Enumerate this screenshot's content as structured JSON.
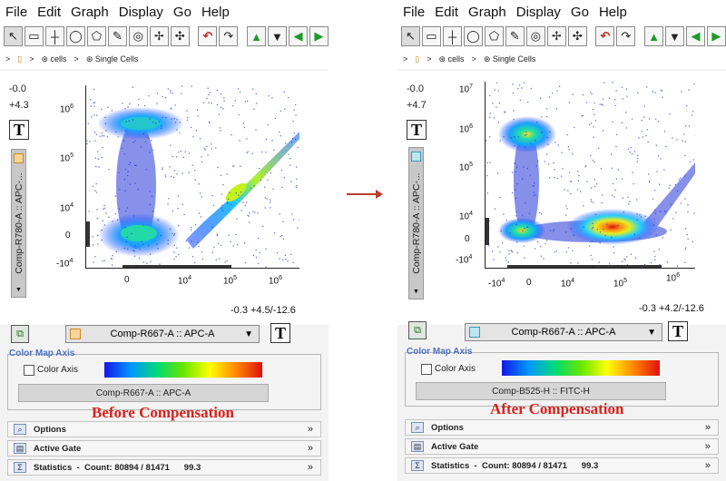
{
  "menu": [
    "File",
    "Edit",
    "Graph",
    "Display",
    "Go",
    "Help"
  ],
  "toolbar_icons": [
    "pointer-icon",
    "rectangle-gate-icon",
    "quadrant-icon",
    "ellipse-gate-icon",
    "polygon-gate-icon",
    "freehand-pencil-icon",
    "web-gate-icon",
    "spider-gate-icon",
    "curly-quad-icon",
    "undo-icon",
    "redo-icon",
    "up-icon",
    "down-icon",
    "left-icon",
    "right-icon"
  ],
  "breadcrumb": {
    "sep": ">",
    "cells": "cells",
    "single_cells": "Single Cells"
  },
  "left": {
    "y_range_min": "-0.0",
    "y_range_max": "+4.3",
    "y_param": "Comp-R780-A :: APC-...",
    "x_info": "-0.3 +4.5/-12.6",
    "x_param": "Comp-R667-A :: APC-A",
    "t_label": "T",
    "color_map_title": "Color Map Axis",
    "color_axis_label": "Color Axis",
    "color_map_param": "Comp-R667-A :: APC-A",
    "caption": "Before Compensation",
    "options": "Options",
    "active_gate": "Active Gate",
    "statistics": "Statistics  -  Count: 80894 / 81471      99.3",
    "y_ticks": [
      "10",
      "10",
      "10",
      "0",
      "-10"
    ],
    "y_exps": [
      "6",
      "5",
      "4",
      "",
      "4"
    ],
    "x_ticks": [
      "0",
      "10",
      "10",
      "10"
    ],
    "x_exps": [
      "",
      "4",
      "5",
      "6"
    ]
  },
  "right": {
    "y_range_min": "-0.0",
    "y_range_max": "+4.7",
    "y_param": "Comp-R780-A :: APC-...",
    "x_info": "-0.3 +4.2/-12.6",
    "x_param": "Comp-R667-A :: APC-A",
    "t_label": "T",
    "color_map_title": "Color Map Axis",
    "color_axis_label": "Color Axis",
    "color_map_param": "Comp-B525-H :: FITC-H",
    "caption": "After Compensation",
    "options": "Options",
    "active_gate": "Active Gate",
    "statistics": "Statistics  -  Count: 80894 / 81471      99.3",
    "y_ticks": [
      "10",
      "10",
      "10",
      "10",
      "0",
      "-10"
    ],
    "y_exps": [
      "7",
      "6",
      "5",
      "4",
      "",
      "4"
    ],
    "x_ticks": [
      "-10",
      "0",
      "10",
      "10",
      "10"
    ],
    "x_exps": [
      "4",
      "",
      "4",
      "5",
      "6"
    ]
  },
  "colors": {
    "accent_blue": "#4c72c6",
    "caption_red": "#d9221d",
    "arrow": "#c0392b"
  }
}
